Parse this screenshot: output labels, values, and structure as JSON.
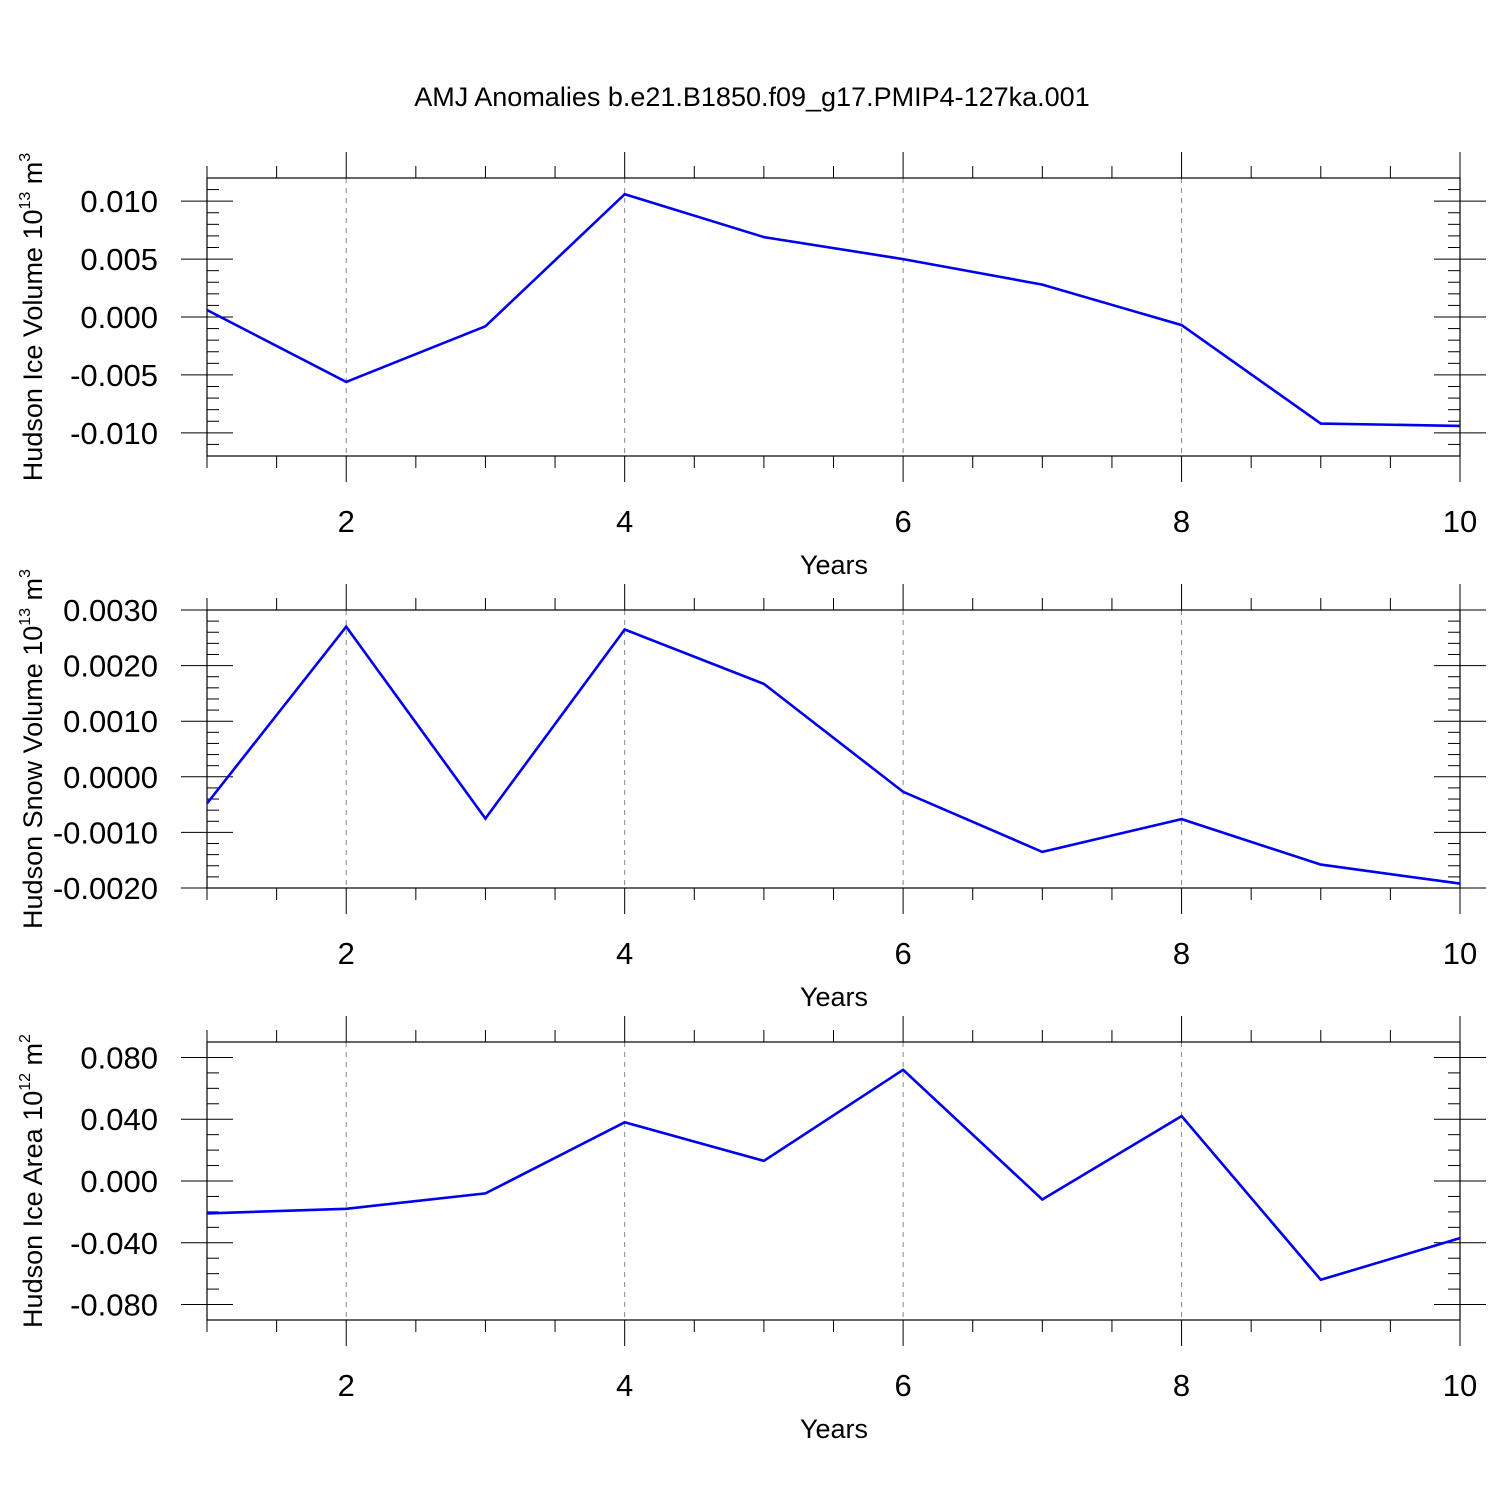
{
  "title": "AMJ Anomalies b.e21.B1850.f09_g17.PMIP4-127ka.001",
  "line_color": "#0000ee",
  "chart_data": [
    {
      "type": "line",
      "xlabel": "Years",
      "ylabel": {
        "prefix": "Hudson Ice Volume 10",
        "exponent": "13",
        "unit": " m",
        "unit_exponent": "3"
      },
      "xlim": [
        1,
        10
      ],
      "ylim": [
        -0.012,
        0.012
      ],
      "xticks": [
        2,
        4,
        6,
        8,
        10
      ],
      "xtick_labels": [
        "2",
        "4",
        "6",
        "8",
        "10"
      ],
      "yticks": [
        0.01,
        0.005,
        0.0,
        -0.005,
        -0.01
      ],
      "ytick_labels": [
        "0.010",
        "0.005",
        "0.000",
        "-0.005",
        "-0.010"
      ],
      "y_minor_step": 0.001,
      "grid": "dashed vertical at major x ticks",
      "x": [
        1,
        2,
        3,
        4,
        5,
        6,
        7,
        8,
        9,
        10
      ],
      "values": [
        0.0006,
        -0.0056,
        -0.0008,
        0.0106,
        0.0069,
        0.005,
        0.0028,
        -0.0007,
        -0.0092,
        -0.0094
      ]
    },
    {
      "type": "line",
      "xlabel": "Years",
      "ylabel": {
        "prefix": "Hudson Snow Volume 10",
        "exponent": "13",
        "unit": " m",
        "unit_exponent": "3"
      },
      "xlim": [
        1,
        10
      ],
      "ylim": [
        -0.002,
        0.003
      ],
      "xticks": [
        2,
        4,
        6,
        8,
        10
      ],
      "xtick_labels": [
        "2",
        "4",
        "6",
        "8",
        "10"
      ],
      "yticks": [
        0.003,
        0.002,
        0.001,
        0.0,
        -0.001,
        -0.002
      ],
      "ytick_labels": [
        "0.0030",
        "0.0020",
        "0.0010",
        "0.0000",
        "-0.0010",
        "-0.0020"
      ],
      "y_minor_step": 0.0002,
      "grid": "dashed vertical at major x ticks",
      "x": [
        1,
        2,
        3,
        4,
        5,
        6,
        7,
        8,
        9,
        10
      ],
      "values": [
        -0.00048,
        0.0027,
        -0.00075,
        0.00265,
        0.00167,
        -0.00027,
        -0.00135,
        -0.00076,
        -0.00158,
        -0.00192
      ]
    },
    {
      "type": "line",
      "xlabel": "Years",
      "ylabel": {
        "prefix": "Hudson Ice Area 10",
        "exponent": "12",
        "unit": " m",
        "unit_exponent": "2"
      },
      "xlim": [
        1,
        10
      ],
      "ylim": [
        -0.09,
        0.09
      ],
      "xticks": [
        2,
        4,
        6,
        8,
        10
      ],
      "xtick_labels": [
        "2",
        "4",
        "6",
        "8",
        "10"
      ],
      "yticks": [
        0.08,
        0.04,
        0.0,
        -0.04,
        -0.08
      ],
      "ytick_labels": [
        "0.080",
        "0.040",
        "0.000",
        "-0.040",
        "-0.080"
      ],
      "y_minor_step": 0.01,
      "grid": "dashed vertical at major x ticks",
      "x": [
        1,
        2,
        3,
        4,
        5,
        6,
        7,
        8,
        9,
        10
      ],
      "values": [
        -0.021,
        -0.018,
        -0.008,
        0.038,
        0.013,
        0.072,
        -0.012,
        0.042,
        -0.064,
        -0.037
      ]
    }
  ]
}
